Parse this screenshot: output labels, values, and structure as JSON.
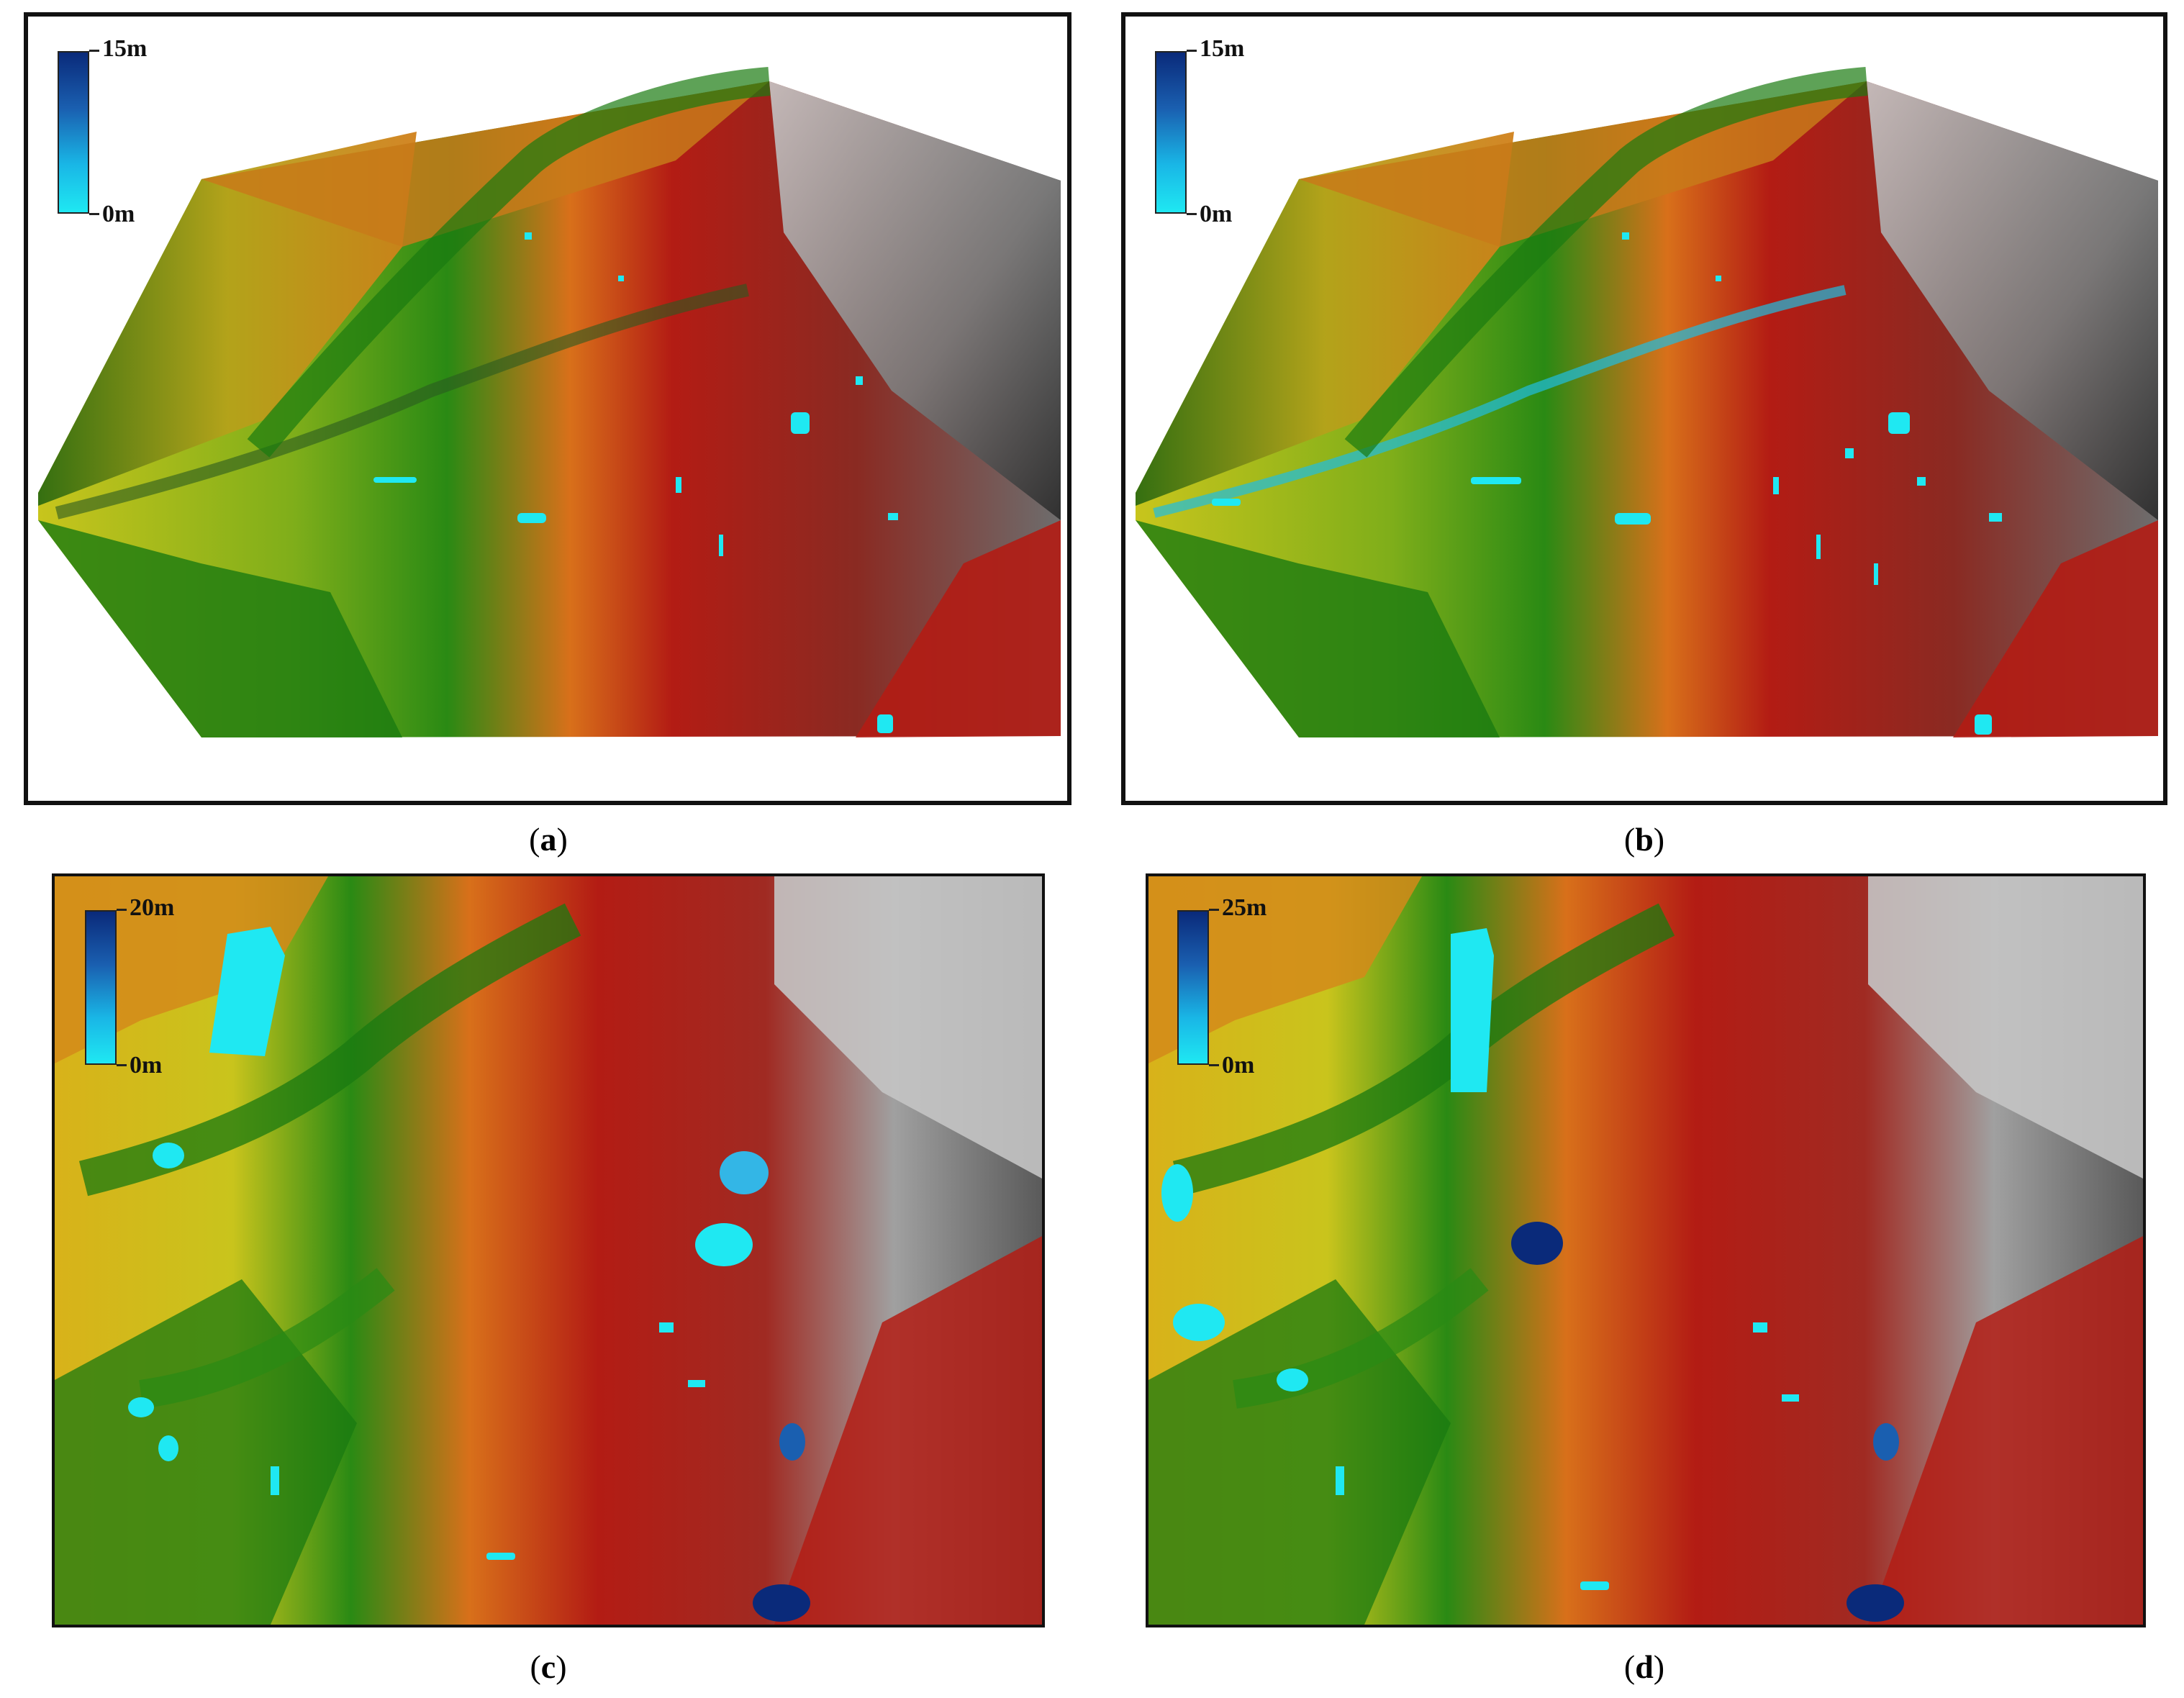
{
  "panels": [
    {
      "id": "a",
      "caption": "a",
      "legend": {
        "max_label": "15m",
        "min_label": "0m"
      }
    },
    {
      "id": "b",
      "caption": "b",
      "legend": {
        "max_label": "15m",
        "min_label": "0m"
      }
    },
    {
      "id": "c",
      "caption": "c",
      "legend": {
        "max_label": "20m",
        "min_label": "0m"
      }
    },
    {
      "id": "d",
      "caption": "d",
      "legend": {
        "max_label": "25m",
        "min_label": "0m"
      }
    }
  ],
  "colors": {
    "terrain_low": "#d9d21a",
    "terrain_mid": "#1d7a12",
    "terrain_high": "#b31c14",
    "terrain_orange": "#e0701a",
    "terrain_grey": "#9a9a9a",
    "water_shallow": "#1fe8f2",
    "water_deep": "#0a2a7a"
  }
}
